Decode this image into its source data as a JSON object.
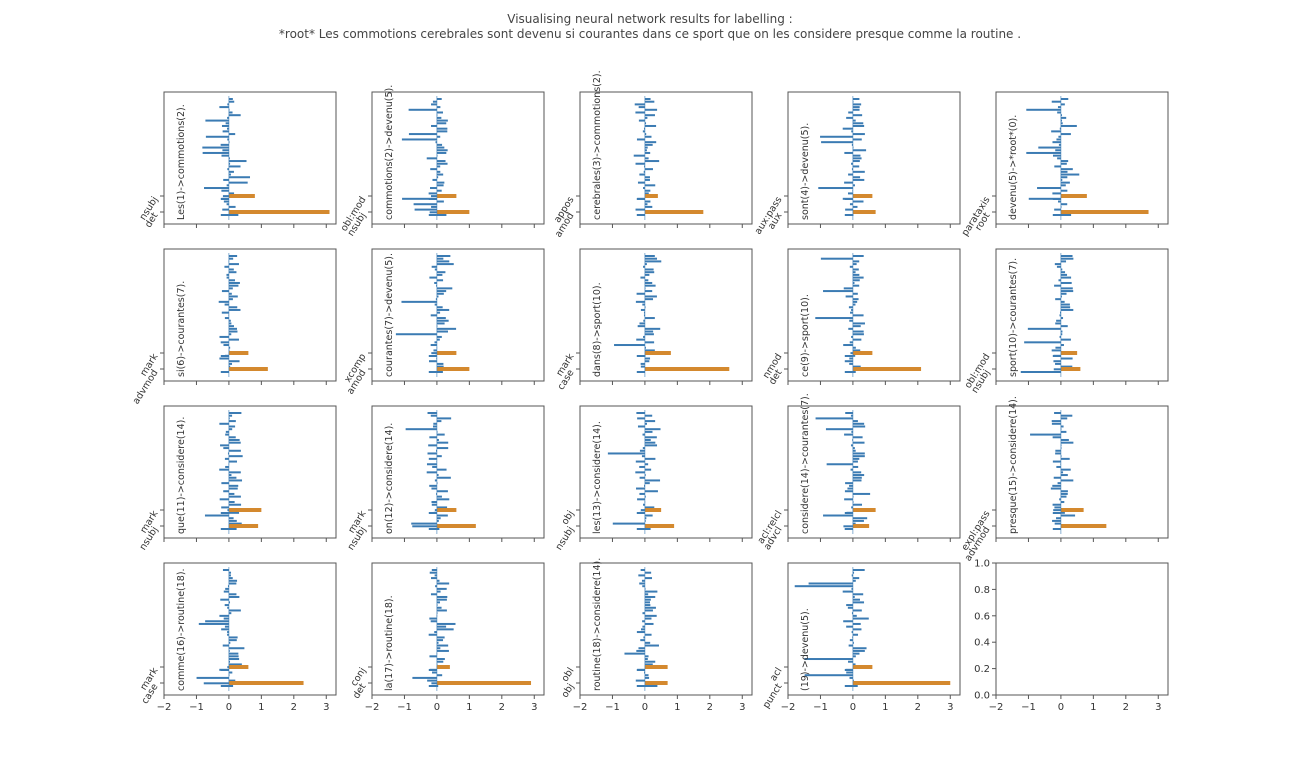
{
  "figure": {
    "title_line1": "Visualising neural network results for labelling :",
    "title_line2": "*root* Les commotions cerebrales sont devenu si courantes dans ce sport que on les considere presque comme la routine ."
  },
  "chart_data": {
    "type": "bar",
    "orientation": "horizontal",
    "grid": "4x5 subplots",
    "xlim": [
      -2,
      3.3
    ],
    "xticks": [
      -2,
      -1,
      0,
      1,
      2,
      3
    ],
    "colors": {
      "blue": "#3b7bb3",
      "orange": "#d4892e",
      "axes": "#555555"
    },
    "empty_axes": {
      "xlim": [
        -2,
        3.3
      ],
      "ylim": [
        0,
        1
      ],
      "xticks": [
        -2,
        -1,
        0,
        1,
        2,
        3
      ],
      "yticks": [
        "0.0",
        "0.2",
        "0.4",
        "0.6",
        "0.8",
        "1.0"
      ]
    },
    "subplots": [
      {
        "label": "Les(1)->commotions(2).",
        "yticks": [
          "nsubj",
          "det"
        ],
        "highlight": [
          {
            "label": "nsubj",
            "value": 0.8
          },
          {
            "label": "det",
            "value": 3.1
          }
        ],
        "blue_min": -1.0,
        "blue_max": 0.8,
        "show_x": false
      },
      {
        "label": "commotions(2)->devenu(5).",
        "yticks": [
          "obl:mod",
          "nsubj"
        ],
        "highlight": [
          {
            "label": "obl:mod",
            "value": 0.6
          },
          {
            "label": "nsubj",
            "value": 1.0
          }
        ],
        "blue_min": -1.1,
        "blue_max": 0.7,
        "show_x": false
      },
      {
        "label": "cerebrales(3)->commotions(2).",
        "yticks": [
          "appos",
          "amod"
        ],
        "highlight": [
          {
            "label": "appos",
            "value": 0.4
          },
          {
            "label": "amod",
            "value": 1.8
          }
        ],
        "blue_min": -0.5,
        "blue_max": 0.5,
        "show_x": false
      },
      {
        "label": "sont(4)->devenu(5).",
        "yticks": [
          "aux:pass",
          "aux"
        ],
        "highlight": [
          {
            "label": "aux:pass",
            "value": 0.6
          },
          {
            "label": "aux",
            "value": 0.7
          }
        ],
        "blue_min": -1.2,
        "blue_max": 0.5,
        "show_x": false
      },
      {
        "label": "devenu(5)->*root*(0).",
        "yticks": [
          "parataxis",
          "root"
        ],
        "highlight": [
          {
            "label": "parataxis",
            "value": 0.8
          },
          {
            "label": "root",
            "value": 2.7
          }
        ],
        "blue_min": -1.1,
        "blue_max": 0.6,
        "show_x": false
      },
      {
        "label": "si(6)->courantes(7).",
        "yticks": [
          "mark",
          "advmod"
        ],
        "highlight": [
          {
            "label": "mark",
            "value": 0.6
          },
          {
            "label": "advmod",
            "value": 1.2
          }
        ],
        "blue_min": -1.0,
        "blue_max": 0.5,
        "show_x": false
      },
      {
        "label": "courantes(7)->devenu(5).",
        "yticks": [
          "xcomp",
          "amod"
        ],
        "highlight": [
          {
            "label": "xcomp",
            "value": 0.6
          },
          {
            "label": "amod",
            "value": 1.0
          }
        ],
        "blue_min": -1.5,
        "blue_max": 0.6,
        "show_x": false
      },
      {
        "label": "dans(8)->sport(10).",
        "yticks": [
          "mark",
          "case"
        ],
        "highlight": [
          {
            "label": "mark",
            "value": 0.8
          },
          {
            "label": "case",
            "value": 2.6
          }
        ],
        "blue_min": -1.0,
        "blue_max": 0.6,
        "show_x": false
      },
      {
        "label": "ce(9)->sport(10).",
        "yticks": [
          "nmod",
          "det"
        ],
        "highlight": [
          {
            "label": "nmod",
            "value": 0.6
          },
          {
            "label": "det",
            "value": 2.1
          }
        ],
        "blue_min": -1.2,
        "blue_max": 0.5,
        "show_x": false
      },
      {
        "label": "sport(10)->courantes(7).",
        "yticks": [
          "obl:mod",
          "nsubj"
        ],
        "highlight": [
          {
            "label": "obl:mod",
            "value": 0.5
          },
          {
            "label": "nsubj",
            "value": 0.6
          }
        ],
        "blue_min": -1.3,
        "blue_max": 0.6,
        "show_x": false
      },
      {
        "label": "que(11)->considere(14).",
        "yticks": [
          "mark",
          "nsubj"
        ],
        "highlight": [
          {
            "label": "mark",
            "value": 1.0
          },
          {
            "label": "nsubj",
            "value": 0.9
          }
        ],
        "blue_min": -1.0,
        "blue_max": 0.6,
        "show_x": false
      },
      {
        "label": "on(12)->considere(14).",
        "yticks": [
          "mark",
          "nsubj"
        ],
        "highlight": [
          {
            "label": "mark",
            "value": 0.6
          },
          {
            "label": "nsubj",
            "value": 1.2
          }
        ],
        "blue_min": -1.0,
        "blue_max": 0.6,
        "show_x": false
      },
      {
        "label": "les(13)->considere(14).",
        "yticks": [
          "obj",
          "nsubj"
        ],
        "highlight": [
          {
            "label": "obj",
            "value": 0.5
          },
          {
            "label": "nsubj",
            "value": 0.9
          }
        ],
        "blue_min": -1.2,
        "blue_max": 0.6,
        "show_x": false
      },
      {
        "label": "considere(14)->courantes(7).",
        "yticks": [
          "acl:relcl",
          "advcl"
        ],
        "highlight": [
          {
            "label": "acl:relcl",
            "value": 0.7
          },
          {
            "label": "advcl",
            "value": 0.5
          }
        ],
        "blue_min": -1.3,
        "blue_max": 0.6,
        "show_x": false
      },
      {
        "label": "presque(15)->considere(14).",
        "yticks": [
          "expl:pass",
          "advmod"
        ],
        "highlight": [
          {
            "label": "expl:pass",
            "value": 0.7
          },
          {
            "label": "advmod",
            "value": 1.4
          }
        ],
        "blue_min": -1.4,
        "blue_max": 0.5,
        "show_x": false
      },
      {
        "label": "comme(16)->routine(18).",
        "yticks": [
          "mark",
          "case"
        ],
        "highlight": [
          {
            "label": "mark",
            "value": 0.6
          },
          {
            "label": "case",
            "value": 2.3
          }
        ],
        "blue_min": -1.0,
        "blue_max": 0.5,
        "show_x": true
      },
      {
        "label": "la(17)->routine(18).",
        "yticks": [
          "conj",
          "det"
        ],
        "highlight": [
          {
            "label": "conj",
            "value": 0.4
          },
          {
            "label": "det",
            "value": 2.9
          }
        ],
        "blue_min": -1.1,
        "blue_max": 0.6,
        "show_x": true
      },
      {
        "label": "routine(18)->considere(14).",
        "yticks": [
          "obl",
          "obj"
        ],
        "highlight": [
          {
            "label": "obl",
            "value": 0.7
          },
          {
            "label": "obj",
            "value": 0.7
          }
        ],
        "blue_min": -1.0,
        "blue_max": 0.6,
        "show_x": true
      },
      {
        "label": "(19)->devenu(5).",
        "yticks": [
          "acl",
          "punct"
        ],
        "highlight": [
          {
            "label": "acl",
            "value": 0.6
          },
          {
            "label": "punct",
            "value": 3.0
          }
        ],
        "blue_min": -1.9,
        "blue_max": 0.5,
        "show_x": true
      }
    ]
  }
}
